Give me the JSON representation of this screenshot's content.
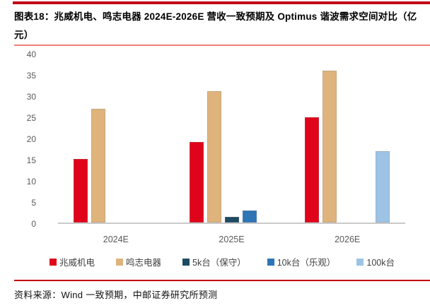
{
  "header": {
    "title": "图表18：兆威机电、鸣志电器 2024E-2026E 营收一致预期及 Optimus 谐波需求空间对比（亿元）"
  },
  "chart_data": {
    "type": "bar",
    "title": "兆威机电、鸣志电器 2024E-2026E 营收一致预期及 Optimus 谐波需求空间对比",
    "unit": "亿元",
    "categories": [
      "2024E",
      "2025E",
      "2026E"
    ],
    "series": [
      {
        "key": "zhaowei",
        "name": "兆威机电",
        "color": "#e0041a",
        "values": [
          15.2,
          19.2,
          25.0
        ]
      },
      {
        "key": "mingzhi",
        "name": "鸣志电器",
        "color": "#dfb47c",
        "values": [
          27.0,
          31.3,
          36.2
        ]
      },
      {
        "key": "5k-conservative",
        "name": "5k台（保守）",
        "color": "#1f4a64",
        "values": [
          null,
          1.4,
          null
        ]
      },
      {
        "key": "10k-optimistic",
        "name": "10k台（乐观）",
        "color": "#2e75b6",
        "values": [
          null,
          2.9,
          null
        ]
      },
      {
        "key": "100k",
        "name": "100k台",
        "color": "#9dc3e6",
        "values": [
          null,
          null,
          16.9
        ]
      }
    ],
    "ylim": [
      0,
      40
    ],
    "yticks": [
      40,
      35,
      30,
      25,
      20,
      15,
      10,
      5,
      0
    ],
    "grid": false,
    "legend_position": "bottom"
  },
  "footer": {
    "source": "资料来源：Wind 一致预期，中邮证券研究所预测"
  }
}
